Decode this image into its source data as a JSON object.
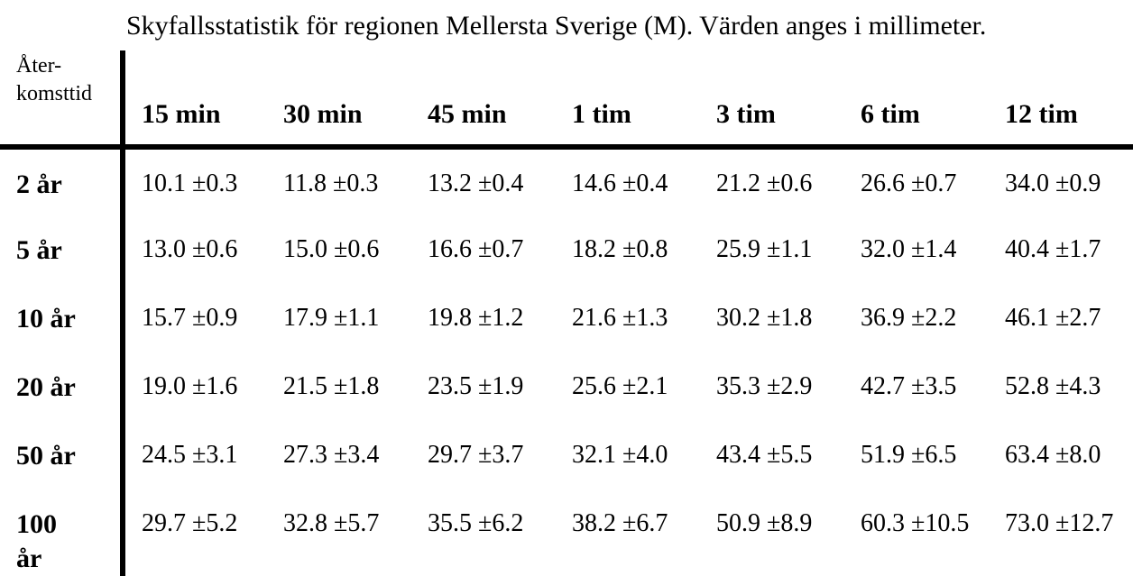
{
  "corner": {
    "line1": "Åter-",
    "line2": "komsttid"
  },
  "colors": {
    "background": "#ffffff",
    "text": "#000000",
    "rule": "#000000"
  },
  "chart_data": {
    "type": "table",
    "title": "Skyfallsstatistik för regionen Mellersta Sverige (M). Värden anges i millimeter.",
    "unit": "millimeter",
    "row_header": "Återkomsttid",
    "columns": [
      "15 min",
      "30 min",
      "45 min",
      "1 tim",
      "3 tim",
      "6 tim",
      "12 tim"
    ],
    "rows": [
      {
        "label": "2 år",
        "values": [
          "10.1 ±0.3",
          "11.8 ±0.3",
          "13.2 ±0.4",
          "14.6 ±0.4",
          "21.2 ±0.6",
          "26.6 ±0.7",
          "34.0 ±0.9"
        ]
      },
      {
        "label": "5 år",
        "values": [
          "13.0 ±0.6",
          "15.0 ±0.6",
          "16.6 ±0.7",
          "18.2 ±0.8",
          "25.9 ±1.1",
          "32.0 ±1.4",
          "40.4 ±1.7"
        ]
      },
      {
        "label": "10 år",
        "values": [
          "15.7 ±0.9",
          "17.9 ±1.1",
          "19.8 ±1.2",
          "21.6 ±1.3",
          "30.2 ±1.8",
          "36.9 ±2.2",
          "46.1 ±2.7"
        ]
      },
      {
        "label": "20 år",
        "values": [
          "19.0 ±1.6",
          "21.5 ±1.8",
          "23.5 ±1.9",
          "25.6 ±2.1",
          "35.3 ±2.9",
          "42.7 ±3.5",
          "52.8 ±4.3"
        ]
      },
      {
        "label": "50 år",
        "values": [
          "24.5 ±3.1",
          "27.3 ±3.4",
          "29.7 ±3.7",
          "32.1 ±4.0",
          "43.4 ±5.5",
          "51.9 ±6.5",
          "63.4 ±8.0"
        ]
      },
      {
        "label": "100 år",
        "values": [
          "29.7 ±5.2",
          "32.8 ±5.7",
          "35.5 ±6.2",
          "38.2 ±6.7",
          "50.9 ±8.9",
          "60.3 ±10.5",
          "73.0 ±12.7"
        ]
      }
    ]
  }
}
